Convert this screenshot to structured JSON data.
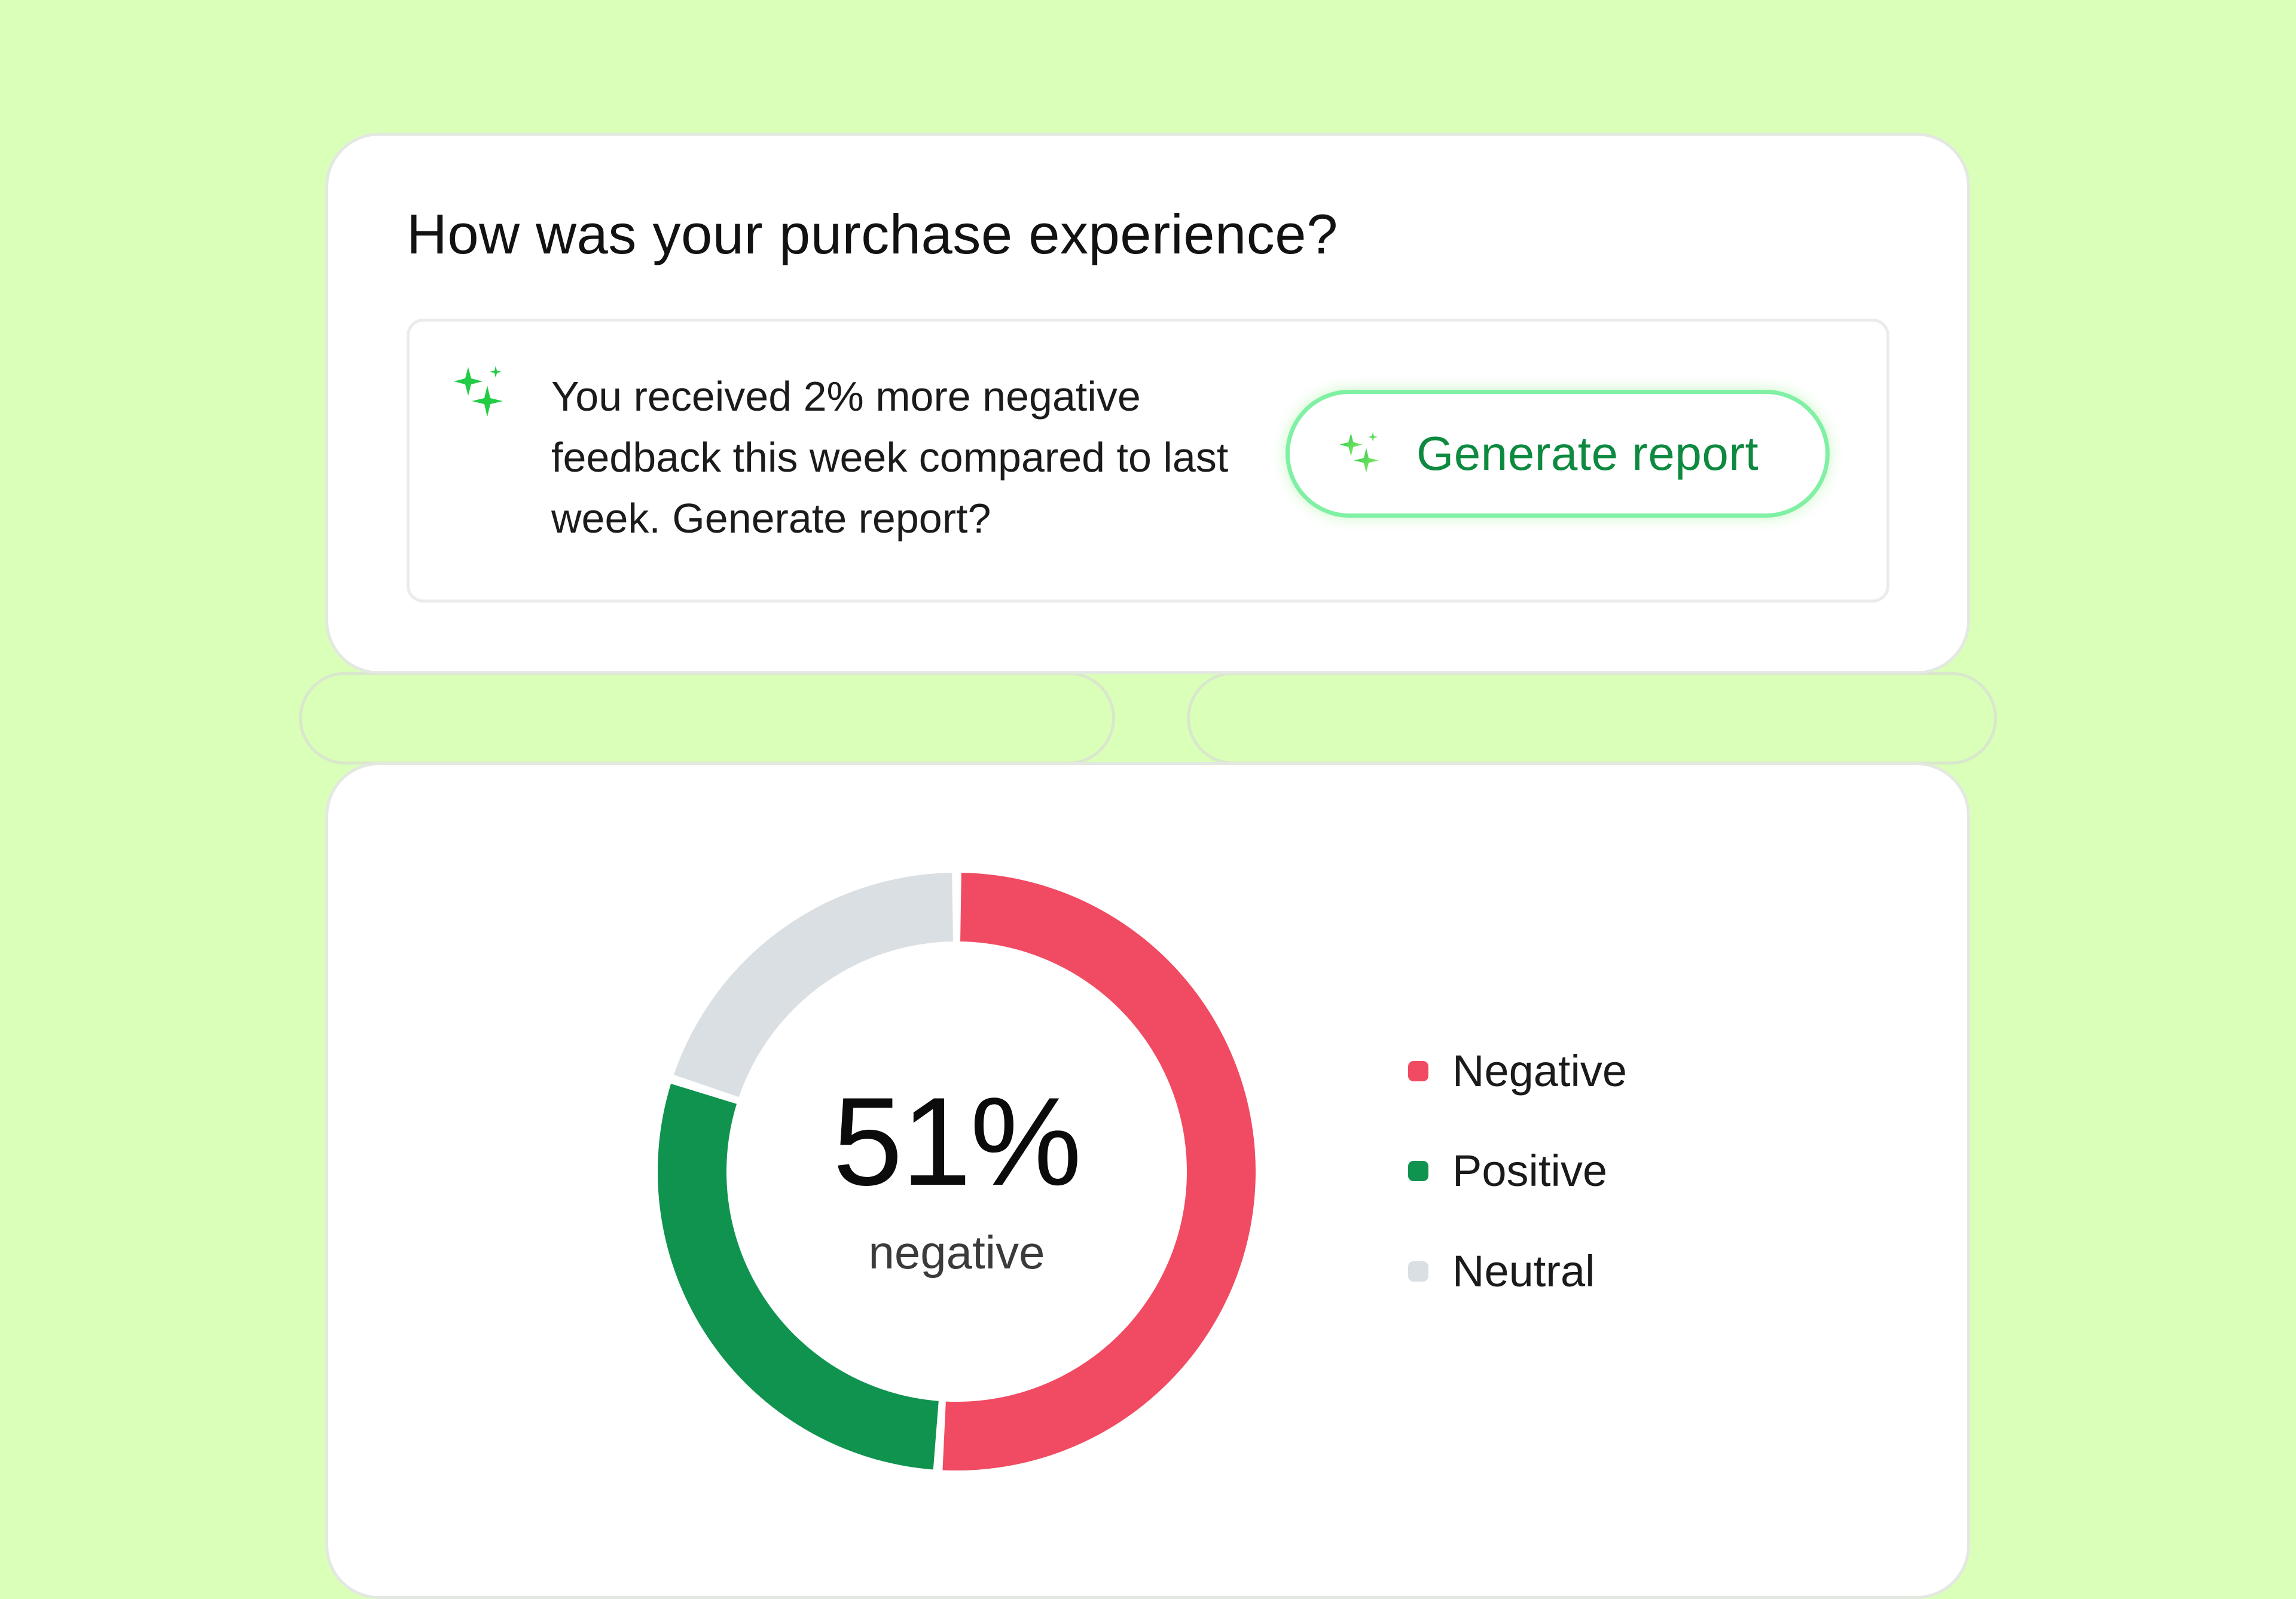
{
  "survey": {
    "question": "How was your purchase experience?"
  },
  "insight": {
    "icon": "sparkles-icon",
    "message": "You received 2% more negative feedback this week compared to last week. Generate report?",
    "button_label": "Generate report",
    "button_icon": "sparkles-icon"
  },
  "chart_data": {
    "type": "pie",
    "categories": [
      "Negative",
      "Positive",
      "Neutral"
    ],
    "values": [
      51,
      29,
      20
    ],
    "unit": "%",
    "center_value": "51%",
    "center_label": "negative",
    "legend_position": "right"
  },
  "colors": {
    "negative": "#f04b62",
    "positive": "#10934f",
    "neutral": "#d9dfe2",
    "accent": "#0d8a3f",
    "sparkle": "#22cc44",
    "background": "#daffb9"
  }
}
